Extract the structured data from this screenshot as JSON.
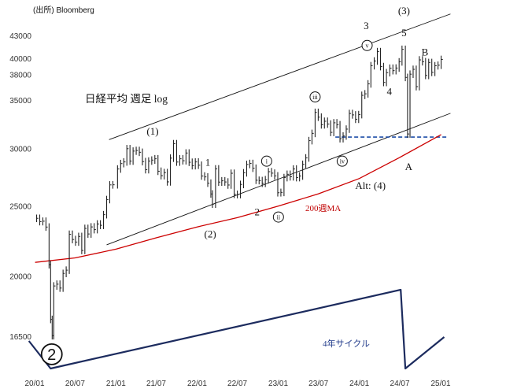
{
  "chart_data": {
    "type": "line",
    "title": "日経平均 週足 log",
    "source": "(出所) Bloomberg",
    "y_scale": "log",
    "ylim": [
      14500,
      47000
    ],
    "y_ticks": [
      {
        "value": 16500,
        "label": "16500"
      },
      {
        "value": 20000,
        "label": "20000"
      },
      {
        "value": 25000,
        "label": "25000"
      },
      {
        "value": 30000,
        "label": "30000"
      },
      {
        "value": 35000,
        "label": "35000"
      },
      {
        "value": 38000,
        "label": "38000"
      },
      {
        "value": 40000,
        "label": "40000"
      },
      {
        "value": 43000,
        "label": "43000"
      }
    ],
    "x_ticks": [
      "20/01",
      "20/07",
      "21/01",
      "21/07",
      "22/01",
      "22/07",
      "23/01",
      "23/07",
      "24/01",
      "24/07",
      "25/01"
    ],
    "series": [
      {
        "name": "",
        "style": "weekly-bars",
        "color": "#222222",
        "points": [
          [
            "2020-01-10",
            24050
          ],
          [
            "2020-01-24",
            23800
          ],
          [
            "2020-02-07",
            23830
          ],
          [
            "2020-02-21",
            23390
          ],
          [
            "2020-03-06",
            20750
          ],
          [
            "2020-03-13",
            17430
          ],
          [
            "2020-03-20",
            16550
          ],
          [
            "2020-03-27",
            19390
          ],
          [
            "2020-04-10",
            19500
          ],
          [
            "2020-04-24",
            19260
          ],
          [
            "2020-05-08",
            20180
          ],
          [
            "2020-05-22",
            20390
          ],
          [
            "2020-06-05",
            22860
          ],
          [
            "2020-06-19",
            22480
          ],
          [
            "2020-07-03",
            22300
          ],
          [
            "2020-07-17",
            22700
          ],
          [
            "2020-07-31",
            21710
          ],
          [
            "2020-08-14",
            23290
          ],
          [
            "2020-08-28",
            22880
          ],
          [
            "2020-09-11",
            23400
          ],
          [
            "2020-09-25",
            23200
          ],
          [
            "2020-10-09",
            23620
          ],
          [
            "2020-10-23",
            23520
          ],
          [
            "2020-11-06",
            24330
          ],
          [
            "2020-11-20",
            25530
          ],
          [
            "2020-12-04",
            26750
          ],
          [
            "2020-12-18",
            26760
          ],
          [
            "2021-01-08",
            28140
          ],
          [
            "2021-01-22",
            28630
          ],
          [
            "2021-02-05",
            28780
          ],
          [
            "2021-02-19",
            30020
          ],
          [
            "2021-03-05",
            28860
          ],
          [
            "2021-03-19",
            29790
          ],
          [
            "2021-04-02",
            29850
          ],
          [
            "2021-04-16",
            29680
          ],
          [
            "2021-04-30",
            28810
          ],
          [
            "2021-05-14",
            28080
          ],
          [
            "2021-05-28",
            28860
          ],
          [
            "2021-06-11",
            28950
          ],
          [
            "2021-06-25",
            29070
          ],
          [
            "2021-07-09",
            27940
          ],
          [
            "2021-07-23",
            27550
          ],
          [
            "2021-08-06",
            27820
          ],
          [
            "2021-08-20",
            27010
          ],
          [
            "2021-09-03",
            29130
          ],
          [
            "2021-09-17",
            30500
          ],
          [
            "2021-10-01",
            28770
          ],
          [
            "2021-10-15",
            29070
          ],
          [
            "2021-10-29",
            28890
          ],
          [
            "2021-11-12",
            29610
          ],
          [
            "2021-11-26",
            28750
          ],
          [
            "2021-12-10",
            28440
          ],
          [
            "2021-12-24",
            28780
          ],
          [
            "2022-01-07",
            28480
          ],
          [
            "2022-01-21",
            27520
          ],
          [
            "2022-02-04",
            27440
          ],
          [
            "2022-02-18",
            26900
          ],
          [
            "2022-03-04",
            25990
          ],
          [
            "2022-03-11",
            25160
          ],
          [
            "2022-03-25",
            28150
          ],
          [
            "2022-04-08",
            26990
          ],
          [
            "2022-04-22",
            27100
          ],
          [
            "2022-05-06",
            27000
          ],
          [
            "2022-05-20",
            26740
          ],
          [
            "2022-06-03",
            27760
          ],
          [
            "2022-06-17",
            25960
          ],
          [
            "2022-07-01",
            25940
          ],
          [
            "2022-07-15",
            26790
          ],
          [
            "2022-07-29",
            27800
          ],
          [
            "2022-08-12",
            28550
          ],
          [
            "2022-08-26",
            28640
          ],
          [
            "2022-09-09",
            28210
          ],
          [
            "2022-09-23",
            27150
          ],
          [
            "2022-10-07",
            27120
          ],
          [
            "2022-10-21",
            26890
          ],
          [
            "2022-11-04",
            27200
          ],
          [
            "2022-11-18",
            27900
          ],
          [
            "2022-12-02",
            27770
          ],
          [
            "2022-12-16",
            27530
          ],
          [
            "2022-12-30",
            26090
          ],
          [
            "2023-01-13",
            26120
          ],
          [
            "2023-01-27",
            27380
          ],
          [
            "2023-02-10",
            27670
          ],
          [
            "2023-02-24",
            27450
          ],
          [
            "2023-03-10",
            28140
          ],
          [
            "2023-03-24",
            27380
          ],
          [
            "2023-04-07",
            27520
          ],
          [
            "2023-04-21",
            28560
          ],
          [
            "2023-05-05",
            29150
          ],
          [
            "2023-05-19",
            30800
          ],
          [
            "2023-06-02",
            31520
          ],
          [
            "2023-06-16",
            33700
          ],
          [
            "2023-06-30",
            33190
          ],
          [
            "2023-07-14",
            32390
          ],
          [
            "2023-07-28",
            32760
          ],
          [
            "2023-08-11",
            32470
          ],
          [
            "2023-08-25",
            31620
          ],
          [
            "2023-09-08",
            32600
          ],
          [
            "2023-09-22",
            32400
          ],
          [
            "2023-10-06",
            30990
          ],
          [
            "2023-10-20",
            31260
          ],
          [
            "2023-11-03",
            31950
          ],
          [
            "2023-11-17",
            33580
          ],
          [
            "2023-12-01",
            33430
          ],
          [
            "2023-12-15",
            32970
          ],
          [
            "2023-12-29",
            33460
          ],
          [
            "2024-01-12",
            35580
          ],
          [
            "2024-01-26",
            35750
          ],
          [
            "2024-02-09",
            36900
          ],
          [
            "2024-02-22",
            39100
          ],
          [
            "2024-03-08",
            39690
          ],
          [
            "2024-03-22",
            40890
          ],
          [
            "2024-04-05",
            38990
          ],
          [
            "2024-04-19",
            37070
          ],
          [
            "2024-05-02",
            38240
          ],
          [
            "2024-05-17",
            38790
          ],
          [
            "2024-05-31",
            38490
          ],
          [
            "2024-06-14",
            38810
          ],
          [
            "2024-06-28",
            39580
          ],
          [
            "2024-07-11",
            41190
          ],
          [
            "2024-07-26",
            37670
          ],
          [
            "2024-08-05",
            31460
          ],
          [
            "2024-08-16",
            38060
          ],
          [
            "2024-08-30",
            38650
          ],
          [
            "2024-09-13",
            36580
          ],
          [
            "2024-09-27",
            39830
          ],
          [
            "2024-10-11",
            39600
          ],
          [
            "2024-10-25",
            37910
          ],
          [
            "2024-11-08",
            39500
          ],
          [
            "2024-11-22",
            38280
          ],
          [
            "2024-12-06",
            39090
          ],
          [
            "2024-12-20",
            39160
          ],
          [
            "2025-01-03",
            39890
          ]
        ]
      },
      {
        "name": "200週MA",
        "style": "line",
        "color": "#cc0000",
        "points": [
          [
            "2020-01-03",
            20900
          ],
          [
            "2020-07-01",
            21200
          ],
          [
            "2021-01-01",
            21800
          ],
          [
            "2021-07-01",
            22600
          ],
          [
            "2022-01-01",
            23400
          ],
          [
            "2022-07-01",
            24100
          ],
          [
            "2023-01-01",
            25000
          ],
          [
            "2023-07-01",
            26000
          ],
          [
            "2024-01-01",
            27300
          ],
          [
            "2024-07-01",
            29200
          ],
          [
            "2025-01-03",
            31400
          ]
        ]
      }
    ],
    "channel_lines": [
      {
        "name": "upper-channel",
        "from": [
          "2020-12-01",
          30900
        ],
        "to": [
          "2025-02-14",
          46100
        ]
      },
      {
        "name": "lower-channel",
        "from": [
          "2020-11-20",
          22100
        ],
        "to": [
          "2025-02-14",
          33600
        ]
      }
    ],
    "support_level": {
      "value": 31150,
      "from": "2023-09-15",
      "to": "2025-01-31",
      "color": "#1f4fa8",
      "style": "dashed"
    },
    "cycle_line": {
      "label": "4年サイクル",
      "color": "#1c2b5e",
      "points": [
        [
          "2019-12-06",
          0.35
        ],
        [
          "2020-03-13",
          0.0
        ],
        [
          "2024-07-05",
          1.0
        ],
        [
          "2024-07-26",
          0.0
        ],
        [
          "2025-01-17",
          0.4
        ]
      ]
    },
    "annotations": [
      {
        "text": "(3)",
        "x": "2024-07-20",
        "y": 46600,
        "kind": "wave"
      },
      {
        "text": "3",
        "x": "2024-02-01",
        "y": 44400,
        "kind": "wave"
      },
      {
        "text": "5",
        "x": "2024-07-20",
        "y": 43450,
        "kind": "wave"
      },
      {
        "text": "v",
        "x": "2024-02-05",
        "y": 41700,
        "kind": "wave-circle"
      },
      {
        "text": "B",
        "x": "2024-10-22",
        "y": 40850,
        "kind": "wave"
      },
      {
        "text": "4",
        "x": "2024-05-15",
        "y": 36050,
        "kind": "wave"
      },
      {
        "text": "iii",
        "x": "2023-06-16",
        "y": 35400,
        "kind": "wave-circle"
      },
      {
        "text": "(1)",
        "x": "2021-06-15",
        "y": 31750,
        "kind": "wave"
      },
      {
        "text": "1",
        "x": "2022-02-18",
        "y": 28750,
        "kind": "wave"
      },
      {
        "text": "i",
        "x": "2022-11-10",
        "y": 28850,
        "kind": "wave-circle"
      },
      {
        "text": "iv",
        "x": "2023-10-16",
        "y": 28850,
        "kind": "wave-circle"
      },
      {
        "text": "A",
        "x": "2024-08-10",
        "y": 28350,
        "kind": "wave"
      },
      {
        "text": "Alt: (4)",
        "x": "2024-02-20",
        "y": 26700,
        "kind": "wave"
      },
      {
        "text": "2",
        "x": "2022-09-28",
        "y": 24550,
        "kind": "wave"
      },
      {
        "text": "ii",
        "x": "2023-01-02",
        "y": 24150,
        "kind": "wave-circle"
      },
      {
        "text": "(2)",
        "x": "2022-03-01",
        "y": 22900,
        "kind": "wave"
      },
      {
        "text": "2",
        "x": "2020-03-18",
        "y": 15600,
        "kind": "wave-big-circle"
      }
    ]
  }
}
